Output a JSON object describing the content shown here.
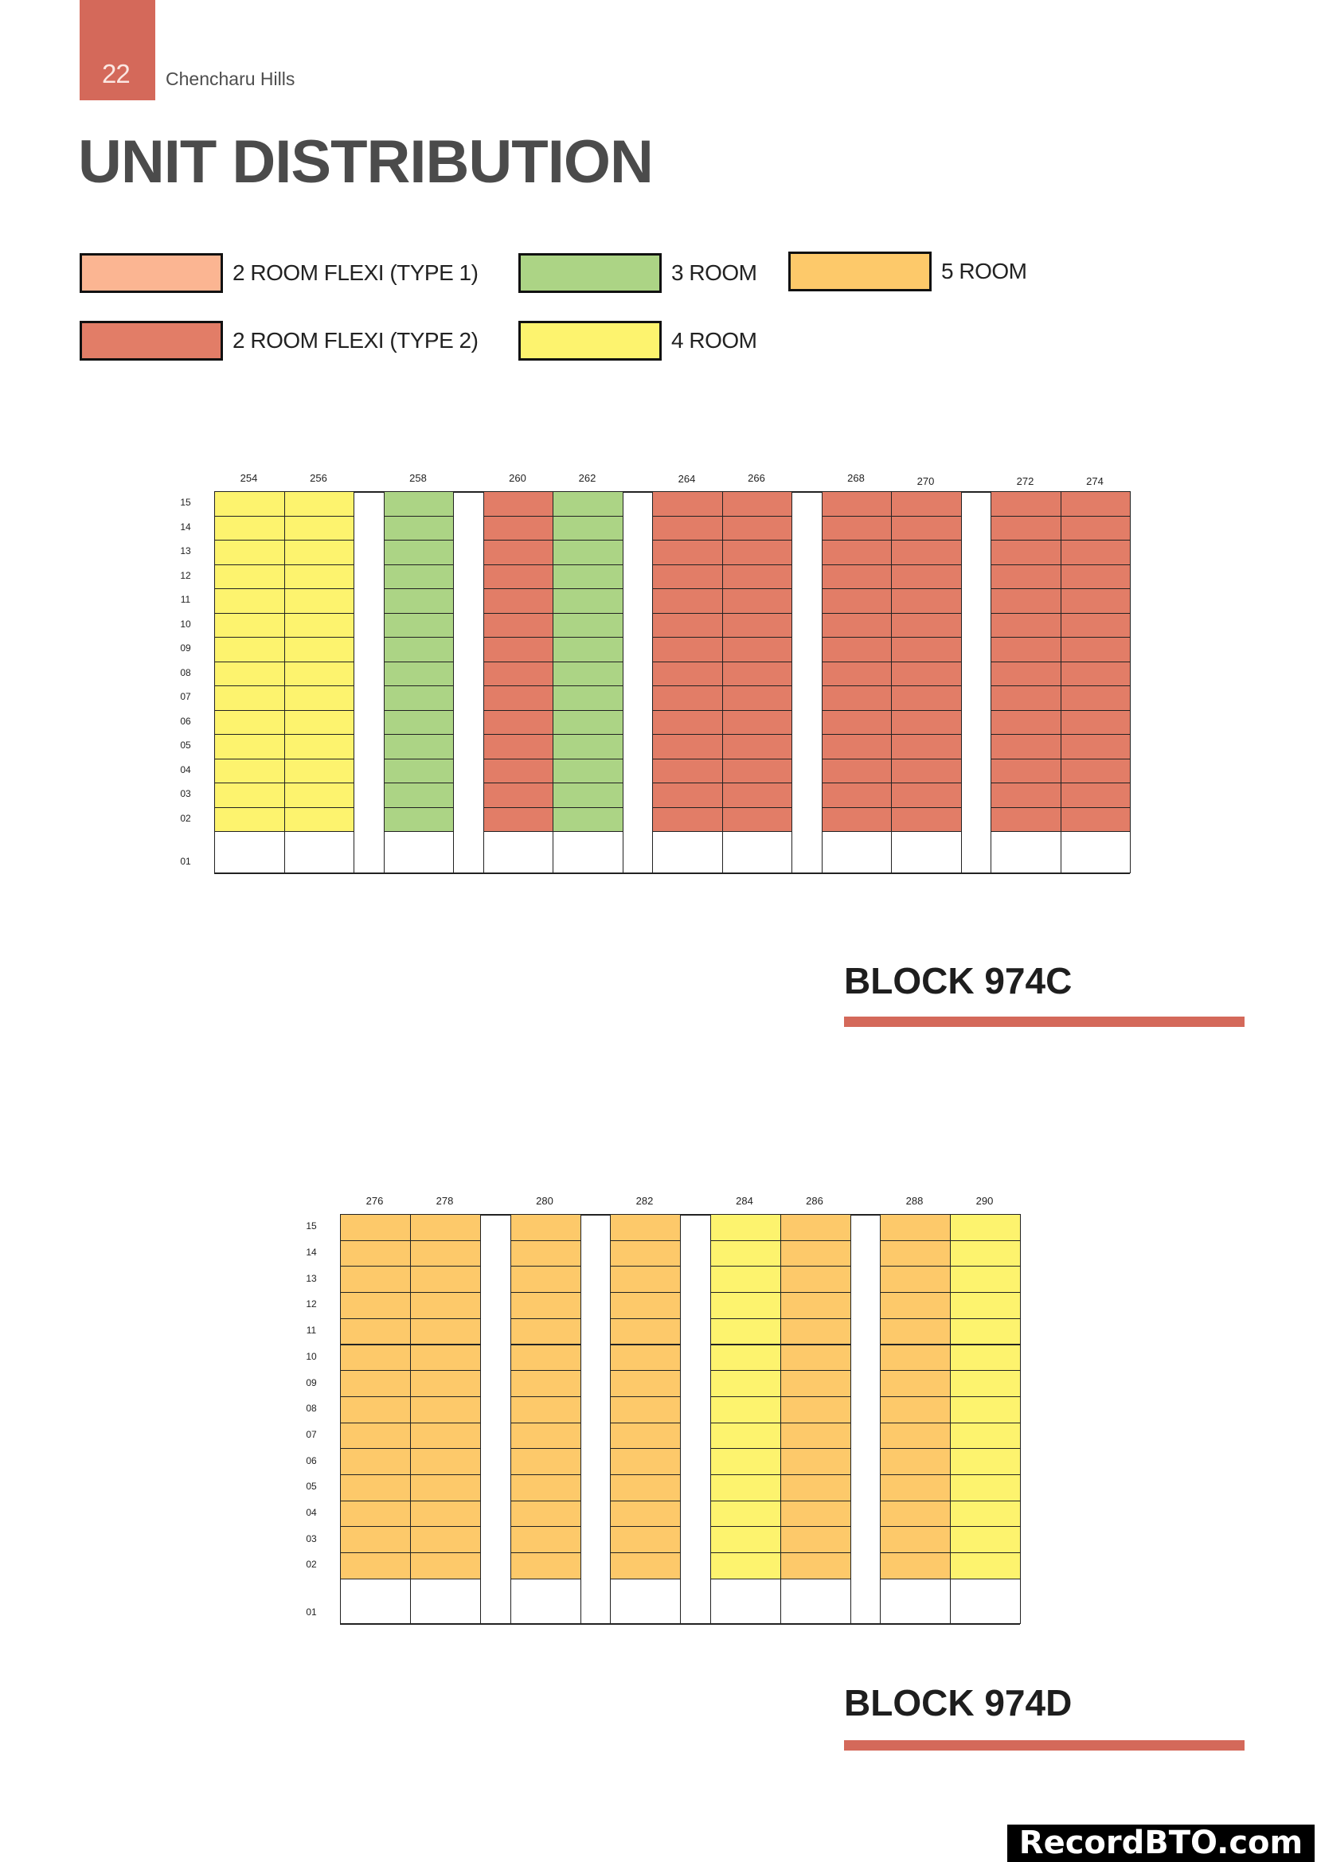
{
  "header": {
    "page_number": "22",
    "document_title": "Chencharu Hills",
    "accent_color": "#d4695a"
  },
  "title": "UNIT DISTRIBUTION",
  "legend": [
    {
      "key": "2rf1",
      "label": "2 ROOM FLEXI (TYPE 1)",
      "color": "#fbb592"
    },
    {
      "key": "3r",
      "label": "3 ROOM",
      "color": "#acd485"
    },
    {
      "key": "5r",
      "label": "5 ROOM",
      "color": "#fdc96a"
    },
    {
      "key": "2rf2",
      "label": "2 ROOM FLEXI (TYPE 2)",
      "color": "#e27d67"
    },
    {
      "key": "4r",
      "label": "4 ROOM",
      "color": "#fdf36e"
    }
  ],
  "blocks": [
    {
      "name": "BLOCK 974C",
      "floors": [
        "15",
        "14",
        "13",
        "12",
        "11",
        "10",
        "09",
        "08",
        "07",
        "06",
        "05",
        "04",
        "03",
        "02",
        "01"
      ],
      "ground_floor_note": "Floor 01 has no units (white cells)",
      "stacks": [
        {
          "unit": "254",
          "type": "4 ROOM"
        },
        {
          "unit": "256",
          "type": "4 ROOM"
        },
        {
          "unit": "258",
          "type": "3 ROOM"
        },
        {
          "unit": "260",
          "type": "2 ROOM FLEXI (TYPE 2)"
        },
        {
          "unit": "262",
          "type": "3 ROOM"
        },
        {
          "unit": "264",
          "type": "2 ROOM FLEXI (TYPE 2)"
        },
        {
          "unit": "266",
          "type": "2 ROOM FLEXI (TYPE 2)"
        },
        {
          "unit": "268",
          "type": "2 ROOM FLEXI (TYPE 2)"
        },
        {
          "unit": "270",
          "type": "2 ROOM FLEXI (TYPE 2)"
        },
        {
          "unit": "272",
          "type": "2 ROOM FLEXI (TYPE 2)"
        },
        {
          "unit": "274",
          "type": "2 ROOM FLEXI (TYPE 2)"
        }
      ]
    },
    {
      "name": "BLOCK 974D",
      "floors": [
        "15",
        "14",
        "13",
        "12",
        "11",
        "10",
        "09",
        "08",
        "07",
        "06",
        "05",
        "04",
        "03",
        "02",
        "01"
      ],
      "ground_floor_note": "Floor 01 has no units (white cells)",
      "stacks": [
        {
          "unit": "276",
          "type": "5 ROOM"
        },
        {
          "unit": "278",
          "type": "5 ROOM"
        },
        {
          "unit": "280",
          "type": "5 ROOM"
        },
        {
          "unit": "282",
          "type": "5 ROOM"
        },
        {
          "unit": "284",
          "type": "4 ROOM"
        },
        {
          "unit": "286",
          "type": "5 ROOM"
        },
        {
          "unit": "288",
          "type": "5 ROOM"
        },
        {
          "unit": "290",
          "type": "4 ROOM"
        }
      ]
    }
  ],
  "watermark": "RecordBTO.com",
  "chart_data": [
    {
      "type": "table",
      "title": "BLOCK 974C",
      "columns": [
        "254",
        "256",
        "258",
        "260",
        "262",
        "264",
        "266",
        "268",
        "270",
        "272",
        "274"
      ],
      "rows": [
        "15",
        "14",
        "13",
        "12",
        "11",
        "10",
        "09",
        "08",
        "07",
        "06",
        "05",
        "04",
        "03",
        "02"
      ],
      "unit_types": [
        "4 ROOM",
        "4 ROOM",
        "3 ROOM",
        "2 ROOM FLEXI (TYPE 2)",
        "3 ROOM",
        "2 ROOM FLEXI (TYPE 2)",
        "2 ROOM FLEXI (TYPE 2)",
        "2 ROOM FLEXI (TYPE 2)",
        "2 ROOM FLEXI (TYPE 2)",
        "2 ROOM FLEXI (TYPE 2)",
        "2 ROOM FLEXI (TYPE 2)"
      ],
      "counts": {
        "4 ROOM": 28,
        "3 ROOM": 28,
        "2 ROOM FLEXI (TYPE 2)": 98
      }
    },
    {
      "type": "table",
      "title": "BLOCK 974D",
      "columns": [
        "276",
        "278",
        "280",
        "282",
        "284",
        "286",
        "288",
        "290"
      ],
      "rows": [
        "15",
        "14",
        "13",
        "12",
        "11",
        "10",
        "09",
        "08",
        "07",
        "06",
        "05",
        "04",
        "03",
        "02"
      ],
      "unit_types": [
        "5 ROOM",
        "5 ROOM",
        "5 ROOM",
        "5 ROOM",
        "4 ROOM",
        "5 ROOM",
        "5 ROOM",
        "4 ROOM"
      ],
      "counts": {
        "5 ROOM": 84,
        "4 ROOM": 28
      }
    }
  ]
}
